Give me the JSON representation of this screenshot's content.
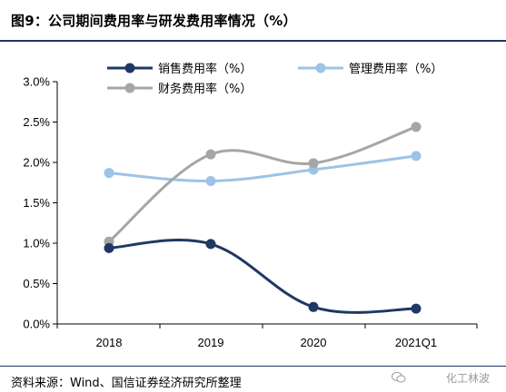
{
  "figure": {
    "title": "图9：公司期间费用率与研发费用率情况（%）",
    "source": "资料来源：Wind、国信证券经济研究所整理",
    "watermark": "化工林波"
  },
  "chart_data": {
    "type": "line",
    "title": "",
    "xlabel": "",
    "ylabel": "",
    "x": [
      "2018",
      "2019",
      "2020",
      "2021Q1"
    ],
    "ylim": [
      0,
      3.0
    ],
    "y_ticks": [
      "0.0%",
      "0.5%",
      "1.0%",
      "1.5%",
      "2.0%",
      "2.5%",
      "3.0%"
    ],
    "y_tick_values": [
      0,
      0.5,
      1.0,
      1.5,
      2.0,
      2.5,
      3.0
    ],
    "grid": false,
    "smooth": true,
    "legend_position": "top",
    "series": [
      {
        "name": "销售费用率（%）",
        "color": "#1f3864",
        "values": [
          0.94,
          0.99,
          0.21,
          0.19
        ]
      },
      {
        "name": "管理费用率（%）",
        "color": "#9dc3e6",
        "values": [
          1.87,
          1.77,
          1.91,
          2.08
        ]
      },
      {
        "name": "财务费用率（%）",
        "color": "#a6a6a6",
        "values": [
          1.02,
          2.1,
          1.99,
          2.44
        ]
      }
    ]
  }
}
